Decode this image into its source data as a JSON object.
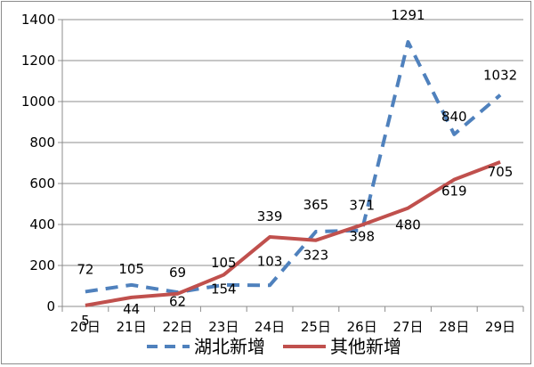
{
  "chart_data": {
    "type": "line",
    "categories": [
      "20日",
      "21日",
      "22日",
      "23日",
      "24日",
      "25日",
      "26日",
      "27日",
      "28日",
      "29日"
    ],
    "ylim": [
      0,
      1400
    ],
    "yticks": [
      "0",
      "200",
      "400",
      "600",
      "800",
      "1000",
      "1200",
      "1400"
    ],
    "grid": true,
    "legend_position": "bottom",
    "series": [
      {
        "name": "湖北新增",
        "color": "#4f81bd",
        "style": "dashed",
        "values": [
          72,
          105,
          69,
          105,
          103,
          365,
          371,
          1291,
          840,
          1032
        ],
        "labels": [
          "72",
          "105",
          "69",
          "105",
          "103",
          "365",
          "371",
          "1291",
          "840",
          "1032"
        ]
      },
      {
        "name": "其他新增",
        "color": "#c0504d",
        "style": "solid",
        "values": [
          5,
          44,
          62,
          154,
          339,
          323,
          398,
          480,
          619,
          705
        ],
        "labels": [
          "5",
          "44",
          "62",
          "154",
          "339",
          "323",
          "398",
          "480",
          "619",
          "705"
        ]
      }
    ]
  }
}
